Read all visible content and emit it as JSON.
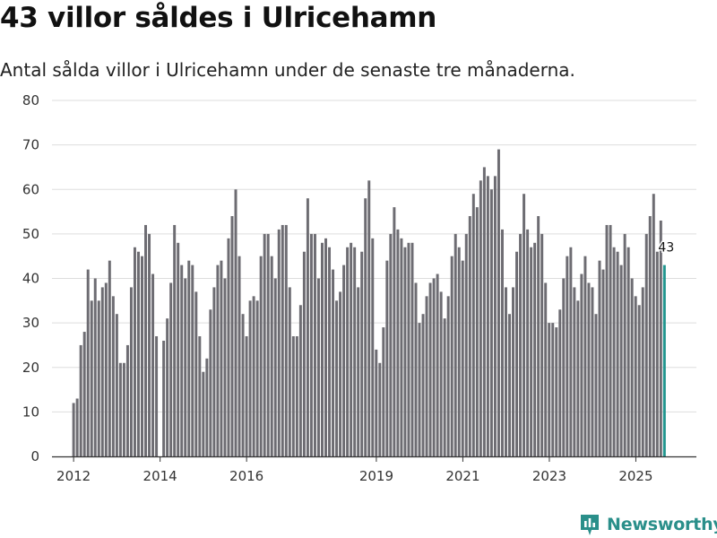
{
  "header": {
    "title": "43 villor såldes i Ulricehamn",
    "subtitle": "Antal sålda villor i Ulricehamn under de senaste tre månaderna."
  },
  "brand": {
    "name": "Newsworthy",
    "color": "#2a8f8a"
  },
  "colors": {
    "bar": "#6d6c72",
    "highlight": "#22968f",
    "grid": "#dddddd",
    "axis": "#333333"
  },
  "chart_data": {
    "type": "bar",
    "title": "43 villor såldes i Ulricehamn",
    "subtitle": "Antal sålda villor i Ulricehamn under de senaste tre månaderna.",
    "xlabel": "",
    "ylabel": "",
    "ylim": [
      0,
      80
    ],
    "yticks": [
      0,
      10,
      20,
      30,
      40,
      50,
      60,
      70,
      80
    ],
    "xlim": [
      2011.5,
      2026.4
    ],
    "xticks": [
      {
        "label": "2012",
        "value": 2012
      },
      {
        "label": "2014",
        "value": 2014
      },
      {
        "label": "2016",
        "value": 2016
      },
      {
        "label": "2019",
        "value": 2019
      },
      {
        "label": "2021",
        "value": 2021
      },
      {
        "label": "2023",
        "value": 2023
      },
      {
        "label": "2025",
        "value": 2025
      }
    ],
    "grid": true,
    "x_start": 2012,
    "x_step": 0.0833,
    "values": [
      12,
      13,
      25,
      28,
      42,
      35,
      40,
      35,
      38,
      39,
      44,
      36,
      32,
      21,
      21,
      25,
      38,
      47,
      46,
      45,
      52,
      50,
      41,
      27,
      null,
      26,
      31,
      39,
      52,
      48,
      43,
      40,
      44,
      43,
      37,
      27,
      19,
      22,
      33,
      38,
      43,
      44,
      40,
      49,
      54,
      60,
      45,
      32,
      27,
      35,
      36,
      35,
      45,
      50,
      50,
      45,
      40,
      51,
      52,
      52,
      38,
      27,
      27,
      34,
      46,
      58,
      50,
      50,
      40,
      48,
      49,
      47,
      42,
      35,
      37,
      43,
      47,
      48,
      47,
      38,
      46,
      58,
      62,
      49,
      24,
      21,
      29,
      44,
      50,
      56,
      51,
      49,
      47,
      48,
      48,
      39,
      30,
      32,
      36,
      39,
      40,
      41,
      37,
      31,
      36,
      45,
      50,
      47,
      44,
      50,
      54,
      59,
      56,
      62,
      65,
      63,
      60,
      63,
      69,
      51,
      38,
      32,
      38,
      46,
      50,
      59,
      51,
      47,
      48,
      54,
      50,
      39,
      30,
      30,
      29,
      33,
      40,
      45,
      47,
      38,
      35,
      41,
      45,
      39,
      38,
      32,
      44,
      42,
      52,
      52,
      47,
      46,
      43,
      50,
      47,
      40,
      36,
      34,
      38,
      50,
      54,
      59,
      46,
      53,
      43
    ],
    "highlight_last": true,
    "annotation": {
      "label": "43",
      "value": 43
    }
  }
}
